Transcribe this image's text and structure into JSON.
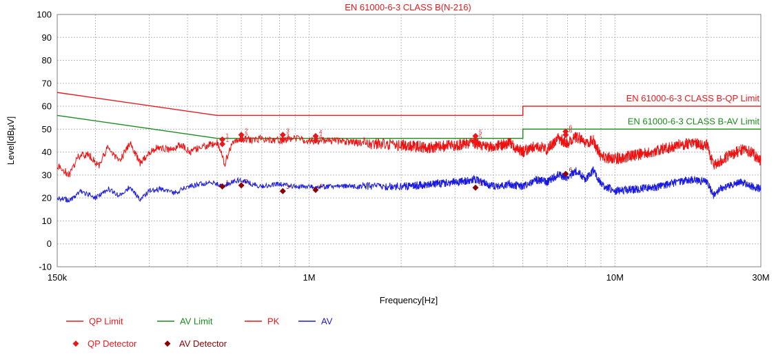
{
  "chart_data": {
    "type": "line",
    "title": "EN 61000-6-3 CLASS B(N-216)",
    "xlabel": "Frequency[Hz]",
    "ylabel": "Level[dBµV]",
    "x_scale": "log",
    "xlim": [
      150000,
      30000000
    ],
    "ylim": [
      -10,
      100
    ],
    "grid": true,
    "x_tick_labels": [
      {
        "value": 150000,
        "label": "150k"
      },
      {
        "value": 1000000,
        "label": "1M"
      },
      {
        "value": 10000000,
        "label": "10M"
      },
      {
        "value": 30000000,
        "label": "30M"
      }
    ],
    "y_ticks": [
      -10,
      0,
      10,
      20,
      30,
      40,
      50,
      60,
      70,
      80,
      90,
      100
    ],
    "colors": {
      "qp_limit": "#e8191c",
      "av_limit": "#1a8c1a",
      "pk": "#ee1111",
      "av": "#1a1ae0",
      "qp_marker": "#e8191c",
      "av_marker": "#8b0000",
      "grid": "#b8b8b8"
    },
    "limit_annotations": [
      {
        "text": "EN 61000-6-3 CLASS B-QP Limit",
        "series": "QP Limit"
      },
      {
        "text": "EN 61000-6-3 CLASS B-AV Limit",
        "series": "AV Limit"
      }
    ],
    "series": [
      {
        "name": "QP Limit",
        "color": "#e8191c",
        "x": [
          150000,
          500000,
          500000,
          5000000,
          5000000,
          30000000
        ],
        "y": [
          66,
          56,
          56,
          56,
          60,
          60
        ]
      },
      {
        "name": "AV Limit",
        "color": "#1a8c1a",
        "x": [
          150000,
          500000,
          500000,
          5000000,
          5000000,
          30000000
        ],
        "y": [
          56,
          46,
          46,
          46,
          50,
          50
        ]
      },
      {
        "name": "PK",
        "color": "#ee1111",
        "x": [
          150000,
          165000,
          175000,
          190000,
          205000,
          220000,
          240000,
          260000,
          280000,
          300000,
          320000,
          350000,
          380000,
          410000,
          440000,
          470000,
          500000,
          530000,
          560000,
          600000,
          650000,
          700000,
          800000,
          900000,
          1000000,
          1200000,
          1500000,
          2000000,
          2500000,
          3000000,
          3500000,
          4000000,
          4500000,
          5000000,
          5500000,
          6000000,
          6500000,
          7000000,
          7500000,
          8000000,
          8500000,
          9000000,
          10000000,
          12000000,
          14000000,
          16000000,
          18000000,
          20000000,
          21000000,
          22000000,
          24000000,
          26000000,
          28000000,
          30000000
        ],
        "y": [
          34,
          30,
          38,
          39,
          34,
          42,
          36,
          44,
          35,
          40,
          42,
          41,
          43,
          40,
          42,
          43,
          44,
          35,
          44,
          46,
          45,
          46,
          45,
          46,
          45,
          45,
          44,
          43,
          42,
          43,
          44,
          42,
          44,
          40,
          43,
          41,
          46,
          44,
          47,
          44,
          45,
          38,
          37,
          39,
          41,
          43,
          44,
          43,
          34,
          36,
          39,
          41,
          40,
          36
        ]
      },
      {
        "name": "AV",
        "color": "#1a1ae0",
        "x": [
          150000,
          165000,
          180000,
          200000,
          220000,
          240000,
          260000,
          280000,
          300000,
          330000,
          360000,
          400000,
          440000,
          480000,
          520000,
          560000,
          600000,
          650000,
          700000,
          800000,
          900000,
          1000000,
          1200000,
          1500000,
          2000000,
          2500000,
          3000000,
          3500000,
          4000000,
          4500000,
          5000000,
          5500000,
          6000000,
          6500000,
          7000000,
          7500000,
          8000000,
          8500000,
          9000000,
          10000000,
          12000000,
          14000000,
          16000000,
          18000000,
          20000000,
          21000000,
          22000000,
          24000000,
          26000000,
          28000000,
          30000000
        ],
        "y": [
          20,
          19,
          23,
          20,
          24,
          21,
          25,
          19,
          23,
          24,
          22,
          25,
          26,
          27,
          25,
          27,
          28,
          26,
          25,
          26,
          25,
          25,
          25,
          25,
          25,
          26,
          27,
          28,
          25,
          26,
          25,
          28,
          27,
          30,
          29,
          32,
          28,
          32,
          26,
          23,
          24,
          25,
          27,
          28,
          27,
          21,
          24,
          26,
          27,
          25,
          24
        ]
      }
    ],
    "markers": {
      "qp": [
        {
          "num": "1",
          "x": 520000,
          "y": 45.5
        },
        {
          "num": "1",
          "x": 520000,
          "y": 43.5
        },
        {
          "num": "2",
          "x": 600000,
          "y": 47.5
        },
        {
          "num": "2",
          "x": 600000,
          "y": 45.5
        },
        {
          "num": "3",
          "x": 820000,
          "y": 47.5
        },
        {
          "num": "3",
          "x": 820000,
          "y": 45.5
        },
        {
          "num": "4",
          "x": 1050000,
          "y": 47
        },
        {
          "num": "4",
          "x": 1050000,
          "y": 45
        },
        {
          "num": "5",
          "x": 3500000,
          "y": 47
        },
        {
          "num": "5",
          "x": 3500000,
          "y": 45
        },
        {
          "num": "6",
          "x": 6900000,
          "y": 49
        },
        {
          "num": "6",
          "x": 6900000,
          "y": 47.5
        }
      ],
      "av": [
        {
          "num": "1",
          "x": 520000,
          "y": 25
        },
        {
          "num": "2",
          "x": 600000,
          "y": 25.5
        },
        {
          "num": "3",
          "x": 820000,
          "y": 23
        },
        {
          "num": "4",
          "x": 1050000,
          "y": 23.5
        },
        {
          "num": "5",
          "x": 3500000,
          "y": 24.5
        },
        {
          "num": "6",
          "x": 6900000,
          "y": 30.5
        }
      ]
    },
    "legend": {
      "placement": "bottom",
      "lines": [
        {
          "label": "QP Limit",
          "color": "#e8191c"
        },
        {
          "label": "AV Limit",
          "color": "#1a8c1a"
        },
        {
          "label": "PK",
          "color": "#ee1111"
        },
        {
          "label": "AV",
          "color": "#1a1ae0"
        }
      ],
      "markers": [
        {
          "label": "QP Detector",
          "color": "#e8191c"
        },
        {
          "label": "AV Detector",
          "color": "#8b0000"
        }
      ]
    }
  }
}
